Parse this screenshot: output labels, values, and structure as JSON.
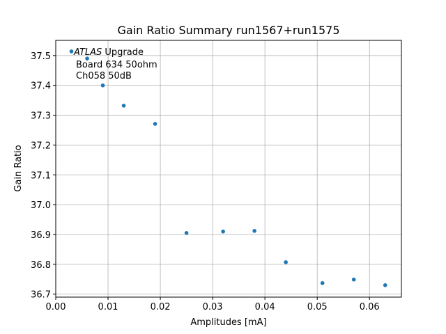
{
  "chart_data": {
    "type": "scatter",
    "title": "Gain Ratio Summary run1567+run1575",
    "xlabel": "Amplitudes [mA]",
    "ylabel": "Gain Ratio",
    "xlim": [
      0.0,
      0.0661
    ],
    "ylim": [
      36.69,
      37.551
    ],
    "grid": true,
    "xticks": [
      "0.00",
      "0.01",
      "0.02",
      "0.03",
      "0.04",
      "0.05",
      "0.06"
    ],
    "xtick_values": [
      0.0,
      0.01,
      0.02,
      0.03,
      0.04,
      0.05,
      0.06
    ],
    "yticks": [
      "36.7",
      "36.8",
      "36.9",
      "37.0",
      "37.1",
      "37.2",
      "37.3",
      "37.4",
      "37.5"
    ],
    "ytick_values": [
      36.7,
      36.8,
      36.9,
      37.0,
      37.1,
      37.2,
      37.3,
      37.4,
      37.5
    ],
    "annotation": {
      "italic": "ATLAS",
      "line1_rest": " Upgrade",
      "line2": "Board 634 50ohm",
      "line3": "Ch058 50dB"
    },
    "color": "#1f77b4",
    "x": [
      0.003,
      0.006,
      0.009,
      0.013,
      0.019,
      0.025,
      0.032,
      0.038,
      0.044,
      0.051,
      0.057,
      0.063
    ],
    "y": [
      37.514,
      37.49,
      37.4,
      37.332,
      37.271,
      36.905,
      36.91,
      36.912,
      36.807,
      36.737,
      36.749,
      36.73
    ]
  }
}
